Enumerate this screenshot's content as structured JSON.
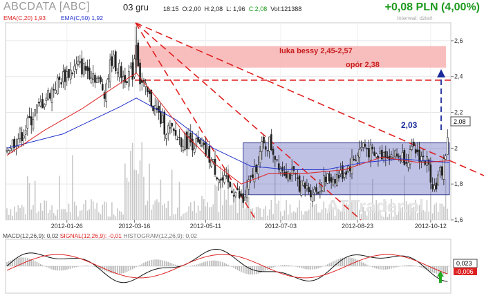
{
  "header": {
    "title": "ABCDATA [ABC]",
    "date": "03 gru",
    "ohlc": {
      "time": "18:15",
      "open": "O:2,00",
      "high": "H:2,08",
      "low": "L: 1,96",
      "close": "C:2,08",
      "volume": "Vol:121388"
    },
    "change": "+0,08 PLN (4,00%)",
    "interval": "Interwał: dzień"
  },
  "legend": {
    "ema20": "EMA(C,20) 1,93",
    "ema50": "EMA(C,50) 1,92"
  },
  "annotations": {
    "gap": "luka bessy 2,45-2,57",
    "resistance": "opór 2,38",
    "box_level": "2,03",
    "last_price": "2,08",
    "watermark": "ATTrader.pl"
  },
  "macd_legend": {
    "macd": "MACD(12,26,9): 0,02",
    "signal": "SIGNAL(12,26,9): -0,01",
    "histogram": "HISTOGRAM(12,26,9): 0,02"
  },
  "macd_labels": {
    "value1": "0,023",
    "value2": "-0,006"
  },
  "colors": {
    "candle": "#222222",
    "ema20": "#dd2222",
    "ema50": "#2233cc",
    "gap_band": "#f7b3b3",
    "box": "#6f74c4",
    "volume": "#c8c8c8",
    "trendline": "#e02020",
    "arrow_up": "#1a2a9a",
    "signal_up": "#22aa22"
  },
  "chart_data": {
    "type": "candlestick",
    "x_ticks": [
      "2012-01-26",
      "2012-03-16",
      "2012-05-11",
      "2012-07-03",
      "2012-08-23",
      "2012-10-12"
    ],
    "y_ticks": [
      "1,6",
      "1,8",
      "2",
      "2,2",
      "2,4",
      "2,6"
    ],
    "ylim": [
      1.6,
      2.7
    ],
    "close_path": [
      [
        0,
        2.0
      ],
      [
        8,
        2.08
      ],
      [
        15,
        2.2
      ],
      [
        22,
        2.3
      ],
      [
        30,
        2.4
      ],
      [
        38,
        2.46
      ],
      [
        46,
        2.42
      ],
      [
        52,
        2.32
      ],
      [
        56,
        2.5
      ],
      [
        62,
        2.4
      ],
      [
        67,
        2.42
      ],
      [
        69,
        2.6
      ],
      [
        71,
        2.38
      ],
      [
        76,
        2.28
      ],
      [
        84,
        2.12
      ],
      [
        92,
        2.05
      ],
      [
        100,
        2.03
      ],
      [
        108,
        1.95
      ],
      [
        114,
        1.82
      ],
      [
        120,
        1.78
      ],
      [
        126,
        1.7
      ],
      [
        130,
        1.82
      ],
      [
        136,
        2.0
      ],
      [
        140,
        2.03
      ],
      [
        146,
        1.9
      ],
      [
        152,
        1.85
      ],
      [
        158,
        1.78
      ],
      [
        164,
        1.76
      ],
      [
        170,
        1.82
      ],
      [
        178,
        1.85
      ],
      [
        184,
        1.92
      ],
      [
        190,
        2.02
      ],
      [
        196,
        1.95
      ],
      [
        202,
        1.98
      ],
      [
        206,
        1.96
      ],
      [
        212,
        1.95
      ],
      [
        218,
        1.98
      ],
      [
        224,
        1.92
      ],
      [
        228,
        1.78
      ],
      [
        232,
        1.88
      ],
      [
        236,
        2.08
      ]
    ],
    "ema20_path": [
      [
        0,
        1.96
      ],
      [
        20,
        2.1
      ],
      [
        40,
        2.22
      ],
      [
        60,
        2.36
      ],
      [
        69,
        2.42
      ],
      [
        80,
        2.28
      ],
      [
        95,
        2.08
      ],
      [
        110,
        1.92
      ],
      [
        125,
        1.8
      ],
      [
        140,
        1.86
      ],
      [
        160,
        1.86
      ],
      [
        180,
        1.88
      ],
      [
        200,
        1.95
      ],
      [
        220,
        1.92
      ],
      [
        236,
        1.93
      ]
    ],
    "ema50_path": [
      [
        0,
        2.0
      ],
      [
        30,
        2.08
      ],
      [
        60,
        2.23
      ],
      [
        69,
        2.28
      ],
      [
        90,
        2.16
      ],
      [
        110,
        2.0
      ],
      [
        130,
        1.9
      ],
      [
        150,
        1.88
      ],
      [
        170,
        1.88
      ],
      [
        190,
        1.92
      ],
      [
        210,
        1.94
      ],
      [
        236,
        1.92
      ]
    ],
    "gap_band": [
      2.45,
      2.57
    ],
    "resistance_level": 2.38,
    "consolidation_box": {
      "from": 126,
      "to": 236,
      "low": 1.74,
      "high": 2.03
    },
    "last_price": 2.08
  }
}
